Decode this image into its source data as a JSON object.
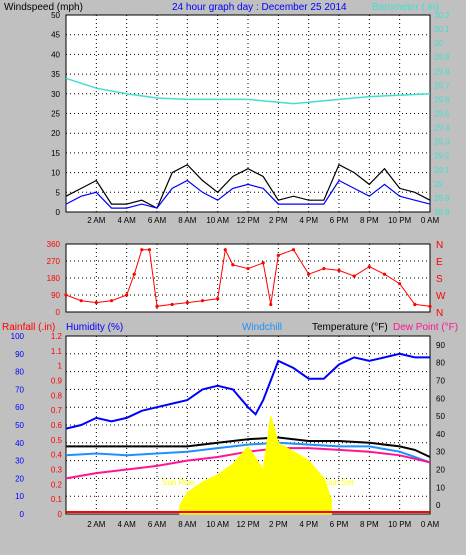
{
  "colors": {
    "background": "#c0c0c0",
    "plot_bg": "#ffffff",
    "grid": "#000000",
    "wind": "#000000",
    "wind_avg": "#0000ff",
    "gust_gray": "#808080",
    "barometer": "#40e0d0",
    "direction": "#ff0000",
    "rain": "#ff0000",
    "humidity": "#0000ff",
    "windchill": "#1e90ff",
    "temperature": "#000000",
    "dewpoint": "#ff1493",
    "solar": "#ffff00",
    "title": "#0000ff"
  },
  "header": {
    "windspeed_label": "Windspeed (mph)",
    "title": "24 hour graph day : December 25 2014",
    "barometer_label": "Barometer (.in)"
  },
  "bottom_header": {
    "rainfall_label": "Rainfall (.in)",
    "humidity_label": "Humidity (%)",
    "windchill_label": "Windchill",
    "temperature_label": "Temperature (°F)",
    "dewpoint_label": "Dew Point (°F)"
  },
  "sun_labels": {
    "rise": "Sun Rise",
    "set": "Sun Set"
  },
  "chart_data": [
    {
      "type": "line",
      "name": "wind-barometer",
      "x_ticks": [
        "2 AM",
        "4 AM",
        "6 AM",
        "8 AM",
        "10 AM",
        "12 PM",
        "2 PM",
        "4 PM",
        "6 PM",
        "8 PM",
        "10 PM",
        "0 AM"
      ],
      "y_left": {
        "label": "Windspeed (mph)",
        "ticks": [
          0,
          5,
          10,
          15,
          20,
          25,
          30,
          35,
          40,
          45,
          50
        ],
        "ylim": [
          0,
          50
        ]
      },
      "y_right": {
        "label": "Barometer (.in)",
        "ticks": [
          "28.8",
          "28.9",
          "29",
          "29.1",
          "29.2",
          "29.3",
          "29.4",
          "29.5",
          "29.6",
          "29.7",
          "29.8",
          "29.9",
          "30",
          "30.1",
          "30.2"
        ],
        "ylim": [
          28.8,
          30.2
        ]
      },
      "series": [
        {
          "name": "wind gust",
          "color": "#000000",
          "hours": [
            0,
            1,
            2,
            3,
            4,
            5,
            6,
            7,
            8,
            9,
            10,
            11,
            12,
            13,
            14,
            15,
            16,
            17,
            18,
            19,
            20,
            21,
            22,
            23,
            24
          ],
          "values": [
            4,
            6,
            8,
            2,
            2,
            3,
            1,
            10,
            12,
            8,
            5,
            9,
            11,
            9,
            3,
            4,
            3,
            3,
            12,
            10,
            7,
            11,
            6,
            5,
            3
          ]
        },
        {
          "name": "wind average",
          "color": "#0000ff",
          "hours": [
            0,
            1,
            2,
            3,
            4,
            5,
            6,
            7,
            8,
            9,
            10,
            11,
            12,
            13,
            14,
            15,
            16,
            17,
            18,
            19,
            20,
            21,
            22,
            23,
            24
          ],
          "values": [
            2,
            4,
            5,
            1,
            1,
            2,
            1,
            6,
            8,
            5,
            3,
            6,
            7,
            6,
            2,
            2,
            2,
            2,
            8,
            6,
            4,
            7,
            4,
            3,
            2
          ]
        },
        {
          "name": "barometer",
          "color": "#40e0d0",
          "hours": [
            0,
            2,
            4,
            6,
            8,
            10,
            12,
            14,
            15,
            16,
            18,
            20,
            22,
            24
          ],
          "values": [
            29.75,
            29.68,
            29.64,
            29.61,
            29.6,
            29.6,
            29.6,
            29.58,
            29.57,
            29.58,
            29.6,
            29.62,
            29.63,
            29.64
          ]
        }
      ]
    },
    {
      "type": "scatter",
      "name": "wind-direction",
      "y_ticks": [
        0,
        90,
        180,
        270,
        360
      ],
      "compass": [
        "N",
        "W",
        "S",
        "E",
        "N"
      ],
      "ylim": [
        0,
        360
      ],
      "hours": [
        0,
        1,
        2,
        3,
        4,
        4.5,
        5,
        5.5,
        6,
        7,
        8,
        9,
        10,
        10.5,
        11,
        12,
        13,
        13.5,
        14,
        15,
        16,
        17,
        18,
        19,
        20,
        21,
        22,
        23,
        24
      ],
      "values": [
        90,
        60,
        50,
        60,
        90,
        200,
        330,
        330,
        30,
        40,
        50,
        60,
        70,
        330,
        250,
        230,
        260,
        40,
        300,
        330,
        200,
        230,
        220,
        190,
        240,
        200,
        150,
        40,
        30
      ]
    },
    {
      "type": "line",
      "name": "temperature-humidity",
      "y_left_rain": {
        "label": "Rainfall (.in)",
        "ticks": [
          "0",
          "0.1",
          "0.2",
          "0.3",
          "0.4",
          "0.5",
          "0.6",
          "0.7",
          "0.8",
          "0.9",
          "1",
          "1.1",
          "1.2"
        ]
      },
      "y_left_humidity": {
        "label": "Humidity (%)",
        "ticks": [
          0,
          10,
          20,
          30,
          40,
          50,
          60,
          70,
          80,
          90,
          100
        ],
        "ylim": [
          0,
          100
        ]
      },
      "y_right": {
        "label": "Temperature (°F)",
        "ticks": [
          0,
          10,
          20,
          30,
          40,
          50,
          60,
          70,
          80,
          90
        ],
        "ylim": [
          -5,
          95
        ]
      },
      "series": [
        {
          "name": "Humidity",
          "color": "#0000ff",
          "hours": [
            0,
            1,
            2,
            3,
            4,
            5,
            6,
            7,
            8,
            9,
            10,
            11,
            12,
            12.5,
            13,
            14,
            15,
            16,
            17,
            18,
            19,
            20,
            21,
            22,
            23,
            24
          ],
          "values": [
            48,
            50,
            54,
            52,
            54,
            58,
            60,
            62,
            64,
            70,
            72,
            70,
            60,
            56,
            64,
            86,
            82,
            76,
            76,
            84,
            88,
            86,
            88,
            90,
            88,
            88
          ]
        },
        {
          "name": "Temperature",
          "color": "#000000",
          "hours": [
            0,
            2,
            4,
            6,
            8,
            10,
            12,
            14,
            16,
            18,
            20,
            22,
            23,
            24
          ],
          "values": [
            33,
            33,
            33,
            33,
            33,
            35,
            37,
            38,
            36,
            36,
            35,
            33,
            31,
            27
          ]
        },
        {
          "name": "Windchill",
          "color": "#1e90ff",
          "hours": [
            0,
            2,
            4,
            6,
            8,
            10,
            12,
            14,
            16,
            18,
            20,
            22,
            23,
            24
          ],
          "values": [
            28,
            29,
            28,
            29,
            30,
            32,
            34,
            35,
            34,
            33,
            33,
            30,
            27,
            24
          ]
        },
        {
          "name": "Dew Point",
          "color": "#ff1493",
          "hours": [
            0,
            2,
            4,
            6,
            8,
            10,
            12,
            14,
            16,
            18,
            20,
            22,
            23,
            24
          ],
          "values": [
            15,
            18,
            20,
            22,
            25,
            27,
            30,
            32,
            32,
            31,
            30,
            28,
            26,
            24
          ]
        },
        {
          "name": "Solar",
          "color": "#ffff00",
          "hours": [
            7.5,
            8,
            9,
            10,
            11,
            12,
            13,
            13.5,
            14,
            15,
            16,
            17,
            17.5
          ],
          "values": [
            5,
            12,
            18,
            22,
            28,
            38,
            25,
            55,
            40,
            35,
            30,
            20,
            8
          ]
        }
      ]
    }
  ]
}
